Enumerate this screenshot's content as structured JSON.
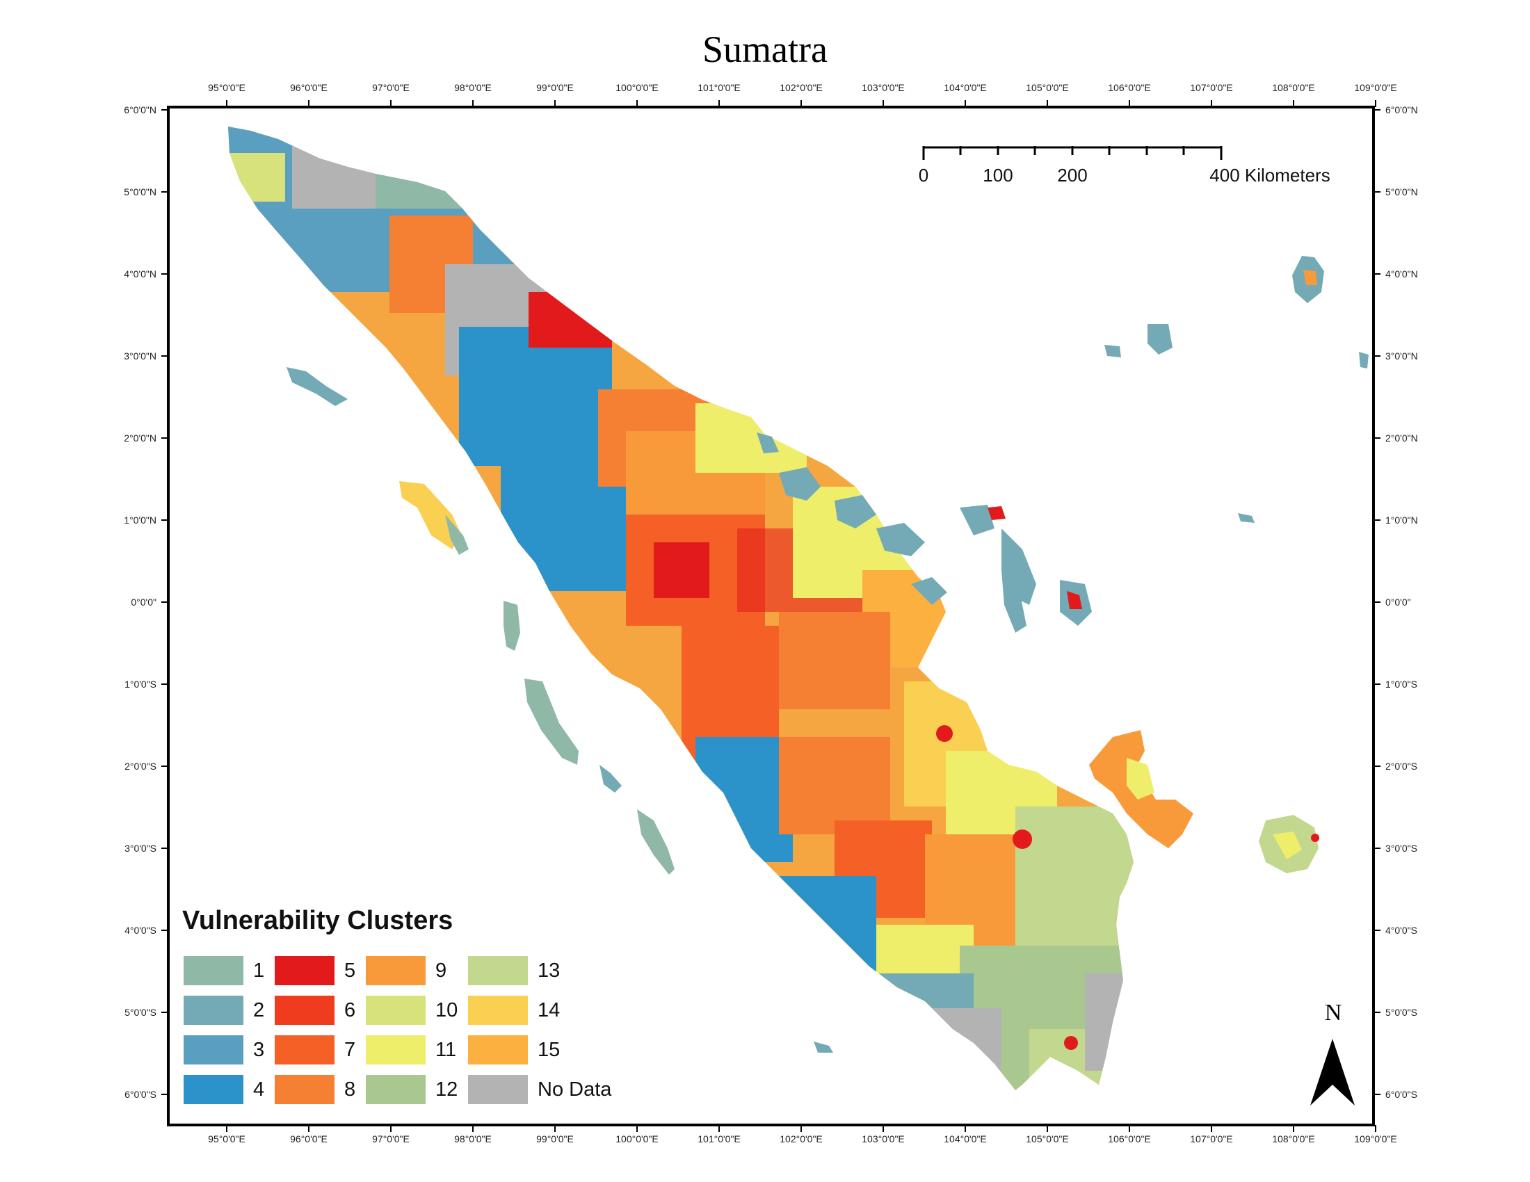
{
  "title": "Sumatra",
  "axes": {
    "longitude_labels": [
      "95°0'0\"E",
      "96°0'0\"E",
      "97°0'0\"E",
      "98°0'0\"E",
      "99°0'0\"E",
      "100°0'0\"E",
      "101°0'0\"E",
      "102°0'0\"E",
      "103°0'0\"E",
      "104°0'0\"E",
      "105°0'0\"E",
      "106°0'0\"E",
      "107°0'0\"E",
      "108°0'0\"E",
      "109°0'0\"E"
    ],
    "latitude_labels": [
      "6°0'0\"N",
      "5°0'0\"N",
      "4°0'0\"N",
      "3°0'0\"N",
      "2°0'0\"N",
      "1°0'0\"N",
      "0°0'0\"",
      "1°0'0\"S",
      "2°0'0\"S",
      "3°0'0\"S",
      "4°0'0\"S",
      "5°0'0\"S",
      "6°0'0\"S"
    ]
  },
  "scale_bar": {
    "labels": [
      "0",
      "100",
      "200",
      "400 Kilometers"
    ]
  },
  "north_arrow": {
    "letter": "N"
  },
  "legend": {
    "title": "Vulnerability Clusters",
    "items": [
      {
        "label": "1",
        "color": "#8fb8a6"
      },
      {
        "label": "2",
        "color": "#74aab5"
      },
      {
        "label": "3",
        "color": "#5a9fc0"
      },
      {
        "label": "4",
        "color": "#2b93c9"
      },
      {
        "label": "5",
        "color": "#e31a1c"
      },
      {
        "label": "6",
        "color": "#ef3b1e"
      },
      {
        "label": "7",
        "color": "#f46025"
      },
      {
        "label": "8",
        "color": "#f57f33"
      },
      {
        "label": "9",
        "color": "#f89a3a"
      },
      {
        "label": "10",
        "color": "#d7e27b"
      },
      {
        "label": "11",
        "color": "#eeee6a"
      },
      {
        "label": "12",
        "color": "#a8c890"
      },
      {
        "label": "13",
        "color": "#c2d88e"
      },
      {
        "label": "14",
        "color": "#fad052"
      },
      {
        "label": "15",
        "color": "#fbb040"
      },
      {
        "label": "No Data",
        "color": "#b3b3b3"
      }
    ]
  }
}
